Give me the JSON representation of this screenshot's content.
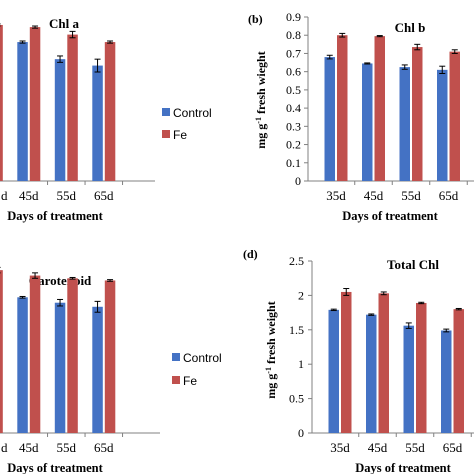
{
  "chart_data": [
    {
      "panel": "a",
      "type": "bar",
      "title": "Chl a",
      "xlabel": "Days of treatment",
      "ylabel": "",
      "categories": [
        "45d",
        "55d",
        "65d"
      ],
      "partial_categories": [
        "d"
      ],
      "ylim": [
        0,
        1.6
      ],
      "yticks": [],
      "series": [
        {
          "name": "Control",
          "values": [
            1.3,
            1.14,
            1.08
          ],
          "errors": [
            0.01,
            0.03,
            0.06
          ],
          "partial_values": [
            1.24
          ]
        },
        {
          "name": "Fe",
          "values": [
            1.44,
            1.37,
            1.3
          ],
          "errors": [
            0.01,
            0.03,
            0.01
          ],
          "partial_values": [
            1.46
          ]
        }
      ],
      "legend": "center-right"
    },
    {
      "panel": "b",
      "label": "(b)",
      "type": "bar",
      "title": "Chl b",
      "xlabel": "Days of treatment",
      "ylabel": "mg g-1 fresh wieght",
      "categories": [
        "35d",
        "45d",
        "55d",
        "65d"
      ],
      "ylim": [
        0,
        0.9
      ],
      "yticks": [
        "0",
        "0.1",
        "0.2",
        "0.3",
        "0.4",
        "0.5",
        "0.6",
        "0.7",
        "0.8",
        "0.9"
      ],
      "series": [
        {
          "name": "Control",
          "values": [
            0.68,
            0.645,
            0.625,
            0.61
          ],
          "errors": [
            0.01,
            0.003,
            0.012,
            0.02
          ]
        },
        {
          "name": "Fe",
          "values": [
            0.8,
            0.795,
            0.735,
            0.71
          ],
          "errors": [
            0.01,
            0.003,
            0.015,
            0.01
          ]
        }
      ]
    },
    {
      "panel": "c",
      "type": "bar",
      "title": "Carotenoid",
      "xlabel": "Days of treatment",
      "ylabel": "",
      "categories": [
        "45d",
        "55d",
        "65d"
      ],
      "partial_categories": [
        "d"
      ],
      "ylim": [
        0,
        0.7
      ],
      "yticks": [],
      "series": [
        {
          "name": "Control",
          "values": [
            0.5,
            0.48,
            0.465
          ],
          "errors": [
            0.003,
            0.012,
            0.02
          ],
          "partial_values": [
            0.55
          ]
        },
        {
          "name": "Fe",
          "values": [
            0.58,
            0.57,
            0.562
          ],
          "errors": [
            0.01,
            0.003,
            0.003
          ],
          "partial_values": [
            0.6
          ]
        }
      ],
      "legend": "center-right"
    },
    {
      "panel": "d",
      "label": "(d)",
      "type": "bar",
      "title": "Total Chl",
      "xlabel": "Days of treatment",
      "ylabel": "mg g-1 fresh weight",
      "categories": [
        "35d",
        "45d",
        "55d",
        "65d"
      ],
      "ylim": [
        0,
        2.5
      ],
      "yticks": [
        "0",
        "0.5",
        "1",
        "1.5",
        "2",
        "2.5"
      ],
      "series": [
        {
          "name": "Control",
          "values": [
            1.79,
            1.72,
            1.56,
            1.49
          ],
          "errors": [
            0.01,
            0.01,
            0.04,
            0.02
          ]
        },
        {
          "name": "Fe",
          "values": [
            2.05,
            2.03,
            1.89,
            1.8
          ],
          "errors": [
            0.05,
            0.02,
            0.01,
            0.01
          ]
        }
      ]
    }
  ],
  "colors": {
    "control": "#4472c4",
    "fe": "#c0504d",
    "axis": "#808080",
    "error": "#000000"
  },
  "legend_labels": {
    "control": "Control",
    "fe": "Fe"
  }
}
